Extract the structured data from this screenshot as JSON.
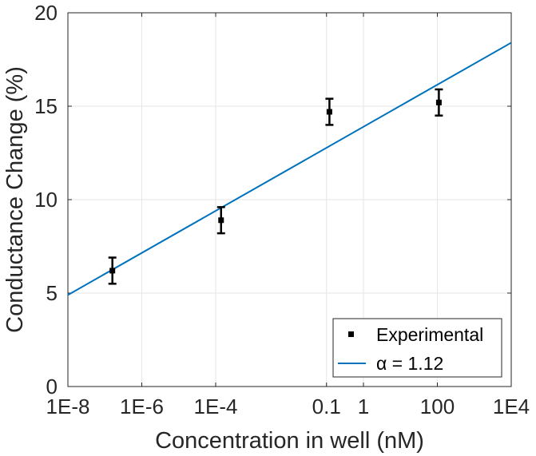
{
  "chart_data": {
    "type": "scatter",
    "title": "",
    "xlabel": "Concentration in well (nM)",
    "ylabel": "Conductance Change (%)",
    "xscale": "log",
    "xlim": [
      1e-08,
      10000
    ],
    "ylim": [
      0,
      20
    ],
    "x_ticks": [
      1e-08,
      1e-06,
      0.0001,
      0.1,
      1,
      100,
      10000
    ],
    "x_tick_labels": [
      "1E-8",
      "1E-6",
      "1E-4",
      "0.1",
      "1",
      "100",
      "1E4"
    ],
    "y_ticks": [
      0,
      5,
      10,
      15,
      20
    ],
    "y_tick_labels": [
      "0",
      "5",
      "10",
      "15",
      "20"
    ],
    "grid": true,
    "legend_position": "bottom-right",
    "series": [
      {
        "name": "Experimental",
        "kind": "scatter-errorbar",
        "color": "#000000",
        "points": [
          {
            "x": 1.6e-07,
            "y": 6.2,
            "err": 0.7
          },
          {
            "x": 0.00014,
            "y": 8.9,
            "err": 0.7
          },
          {
            "x": 0.12,
            "y": 14.7,
            "err": 0.7
          },
          {
            "x": 110,
            "y": 15.2,
            "err": 0.7
          }
        ]
      },
      {
        "name": "α = 1.12",
        "kind": "line",
        "color": "#0072BD",
        "points": [
          {
            "x": 1e-08,
            "y": 4.9
          },
          {
            "x": 10000,
            "y": 18.4
          }
        ]
      }
    ]
  }
}
